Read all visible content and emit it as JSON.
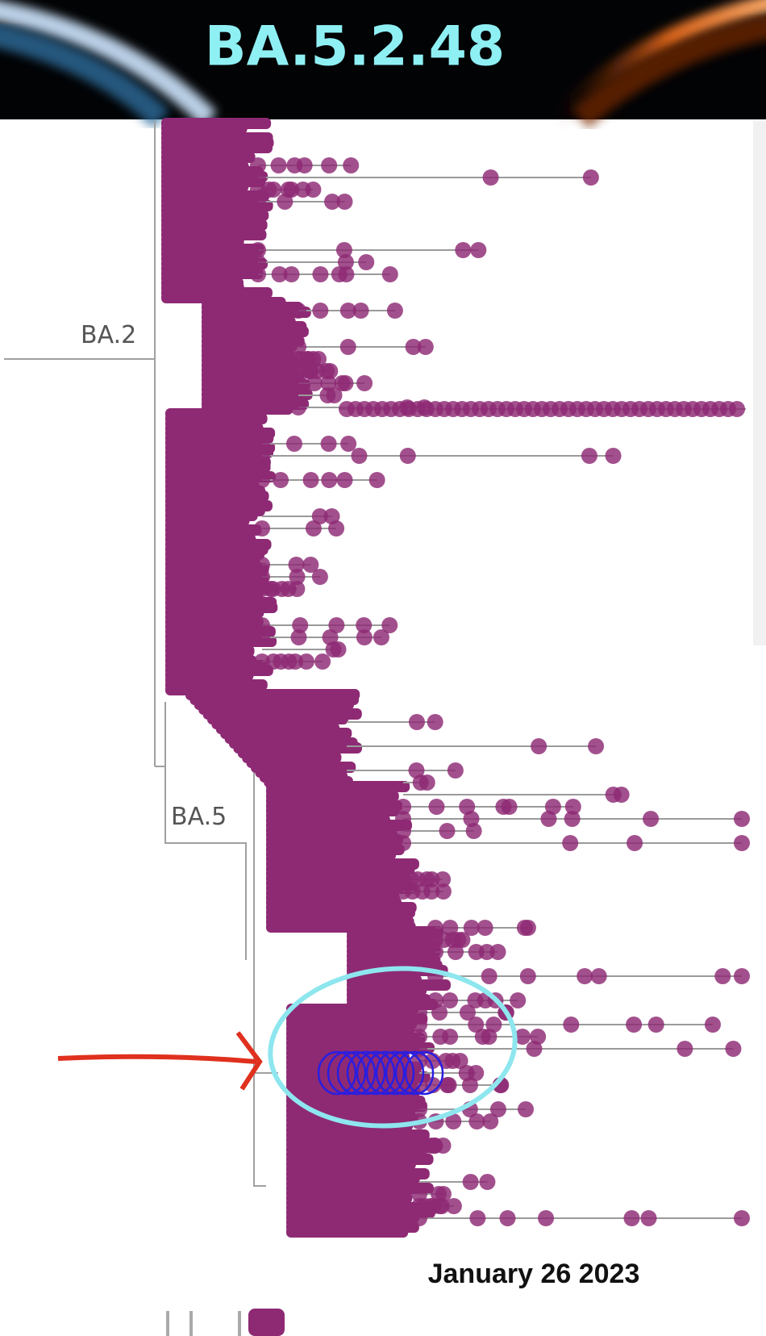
{
  "header": {
    "title": "BA.5.2.48"
  },
  "tree": {
    "labels": [
      "BA.2",
      "BA.5"
    ]
  },
  "footer": {
    "date": "January 26 2023"
  }
}
